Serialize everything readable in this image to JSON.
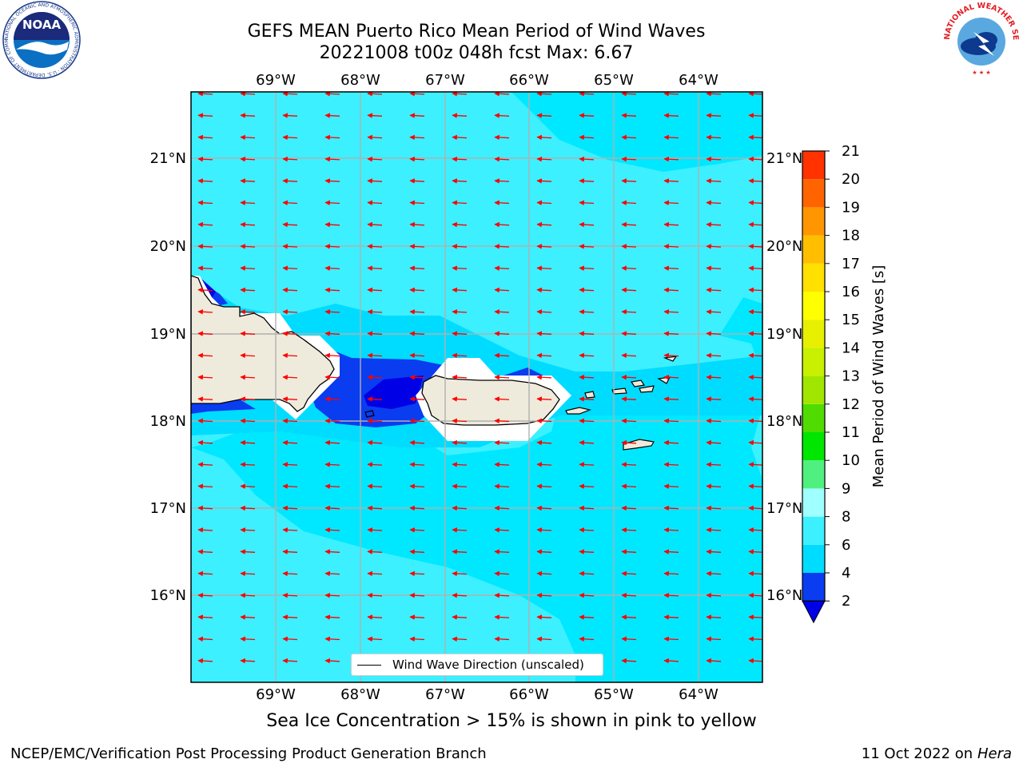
{
  "title": {
    "line1": "GEFS MEAN Puerto Rico Mean Period of Wind Waves",
    "line2": "20221008 t00z 048h fcst   Max: 6.67"
  },
  "logos": {
    "left": "NOAA",
    "left_ring": "NATIONAL OCEANIC AND ATMOSPHERIC ADMINISTRATION · U.S. DEPARTMENT OF COMMERCE",
    "right_ring": "NATIONAL WEATHER SERVICE"
  },
  "map": {
    "lon_labels": [
      "69°W",
      "68°W",
      "67°W",
      "66°W",
      "65°W",
      "64°W"
    ],
    "lat_labels": [
      "21°N",
      "20°N",
      "19°N",
      "18°N",
      "17°N",
      "16°N"
    ],
    "legend_label": "Wind Wave Direction (unscaled)",
    "arrow_color": "#ff0000",
    "land_color": "#efebdc",
    "wave_direction": "toward west"
  },
  "colorbar": {
    "label": "Mean Period of Wind Waves [s]",
    "ticks": [
      "2",
      "4",
      "6",
      "8",
      "9",
      "10",
      "11",
      "12",
      "13",
      "14",
      "15",
      "16",
      "17",
      "18",
      "19",
      "20",
      "21"
    ],
    "colors": [
      "#0a3cf0",
      "#00dcff",
      "#3cf0ff",
      "#a0ffff",
      "#50f080",
      "#00e600",
      "#50dc00",
      "#a0e600",
      "#c8f000",
      "#e6f000",
      "#ffff00",
      "#ffe000",
      "#ffbe00",
      "#ff9600",
      "#ff6400",
      "#ff3200",
      "#ff0000"
    ],
    "under_color": "#0000e6"
  },
  "footer": {
    "note": "Sea Ice Concentration > 15% is shown in pink to yellow",
    "credit_left": "NCEP/EMC/Verification Post Processing Product Generation Branch",
    "date": "11 Oct 2022 on ",
    "host": "Hera"
  }
}
